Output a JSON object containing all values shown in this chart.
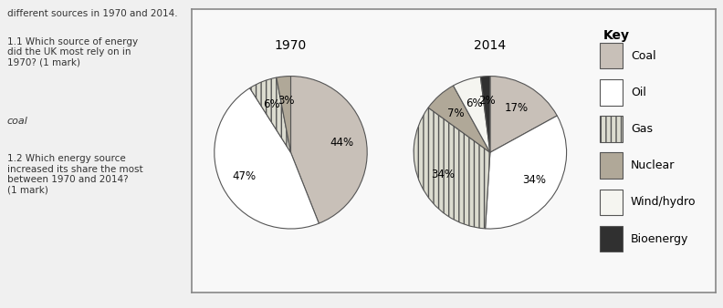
{
  "title_1970": "1970",
  "title_2014": "2014",
  "labels": [
    "Coal",
    "Oil",
    "Gas",
    "Nuclear",
    "Wind/hydro",
    "Bioenergy"
  ],
  "values_1970": [
    44,
    47,
    6,
    3,
    0,
    0
  ],
  "values_2014": [
    17,
    34,
    34,
    7,
    6,
    2
  ],
  "colors_1970": [
    "#c8c0b8",
    "#ffffff",
    "#dcdcd0",
    "#b0a898",
    "#f5f5f0",
    "#303030"
  ],
  "colors_2014": [
    "#c8c0b8",
    "#ffffff",
    "#dcdcd0",
    "#b0a898",
    "#f5f5f0",
    "#303030"
  ],
  "hatches_1970": [
    "",
    "",
    "|||",
    "",
    "",
    ""
  ],
  "hatches_2014": [
    "",
    "",
    "|||",
    "",
    "",
    ""
  ],
  "legend_colors": [
    "#c8c0b8",
    "#ffffff",
    "#dcdcd0",
    "#b0a898",
    "#f5f5f0",
    "#303030"
  ],
  "legend_hatches": [
    "",
    "",
    "|||",
    "",
    "",
    ""
  ],
  "edgecolor": "#555555",
  "key_title": "Key",
  "bg_color": "#f0f0f0",
  "chart_bg": "#ffffff",
  "label_fontsize": 8.5,
  "title_fontsize": 10,
  "legend_fontsize": 9
}
